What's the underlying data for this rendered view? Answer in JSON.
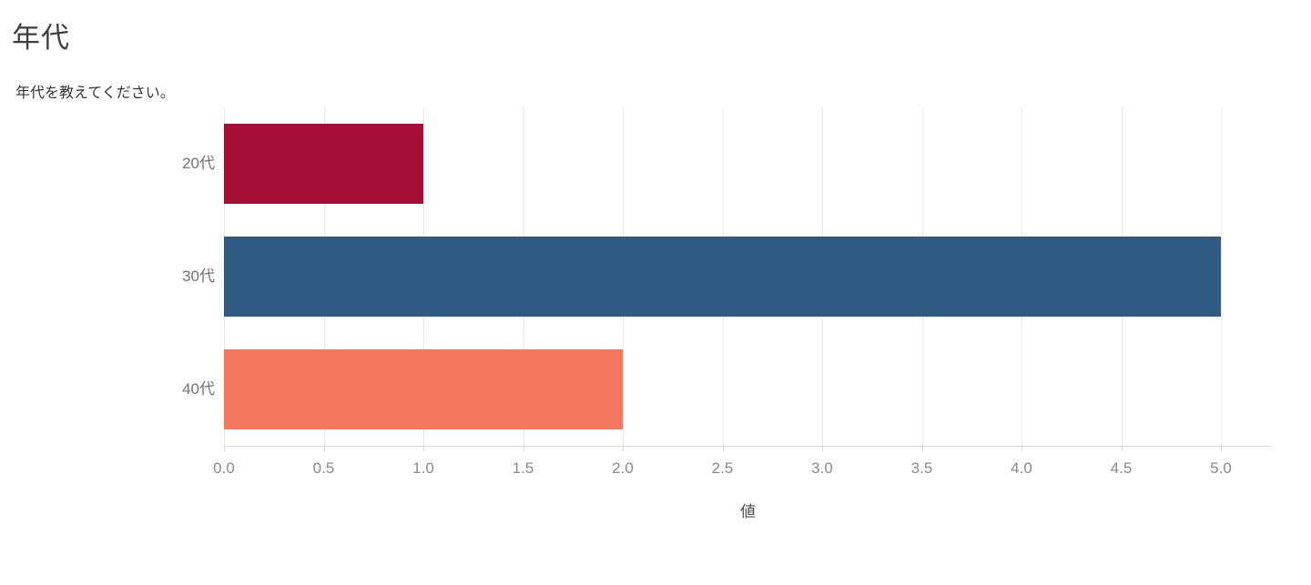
{
  "chart_data": {
    "type": "bar",
    "orientation": "horizontal",
    "title": "年代",
    "subtitle": "年代を教えてください。",
    "categories": [
      "20代",
      "30代",
      "40代"
    ],
    "values": [
      1.0,
      5.0,
      2.0
    ],
    "bar_colors": [
      "#a50e35",
      "#2f5b83",
      "#f3785e"
    ],
    "xlabel": "値",
    "ylabel": "",
    "xlim": [
      0.0,
      5.0
    ],
    "tick_step": 0.5,
    "tick_labels": [
      "0.0",
      "0.5",
      "1.0",
      "1.5",
      "2.0",
      "2.5",
      "3.0",
      "3.5",
      "4.0",
      "4.5",
      "5.0"
    ],
    "grid": true,
    "legend": "none",
    "colors": {
      "background": "#ffffff",
      "gridline": "#e9e9e9",
      "axis_line": "#d7d7d7",
      "title_text": "#3f3f3f",
      "subtitle_text": "#333333",
      "category_text": "#72727c",
      "tick_text": "#8a8a8a"
    }
  }
}
